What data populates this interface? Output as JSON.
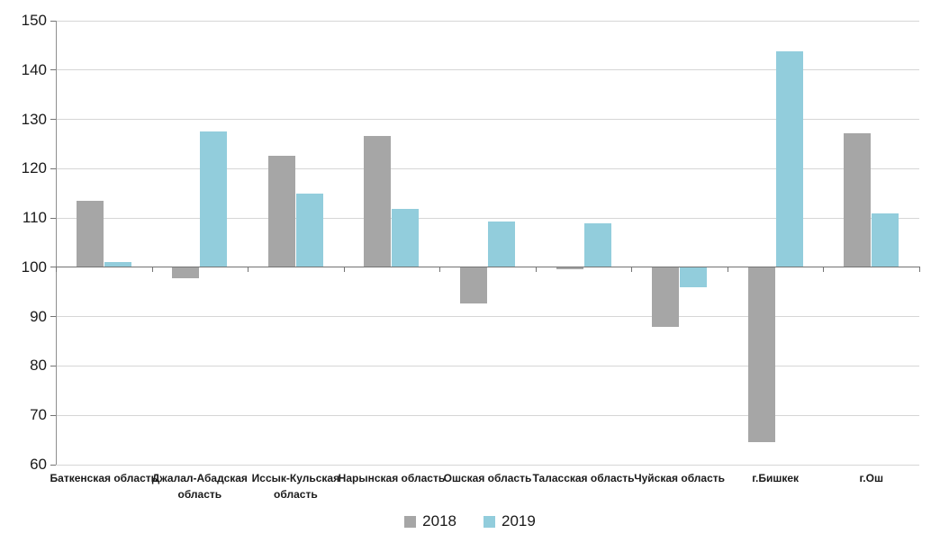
{
  "chart_data": {
    "type": "bar",
    "title": "",
    "xlabel": "",
    "ylabel": "",
    "categories": [
      "Баткенская область",
      "Джалал-Абадская область",
      "Иссык-Кульская область",
      "Нарынская область",
      "Ошская область",
      "Таласская область",
      "Чуйская область",
      "г.Бишкек",
      "г.Ош"
    ],
    "series": [
      {
        "name": "2018",
        "color": "#a6a6a6",
        "values": [
          113.5,
          97.8,
          122.7,
          126.6,
          92.7,
          99.7,
          88.0,
          64.5,
          127.2
        ]
      },
      {
        "name": "2019",
        "color": "#92cddc",
        "values": [
          101.1,
          127.5,
          114.9,
          111.8,
          109.3,
          109.0,
          96.0,
          143.8,
          111.0
        ]
      }
    ],
    "ylim": [
      60,
      150
    ],
    "yticks": [
      60,
      70,
      80,
      90,
      100,
      110,
      120,
      130,
      140,
      150
    ],
    "baseline": 100,
    "grid": true,
    "legend_position": "bottom",
    "colors": {
      "gridline": "#d6d6d6",
      "axis": "#737373",
      "text": "#1a1a1a",
      "background": "#ffffff"
    }
  }
}
